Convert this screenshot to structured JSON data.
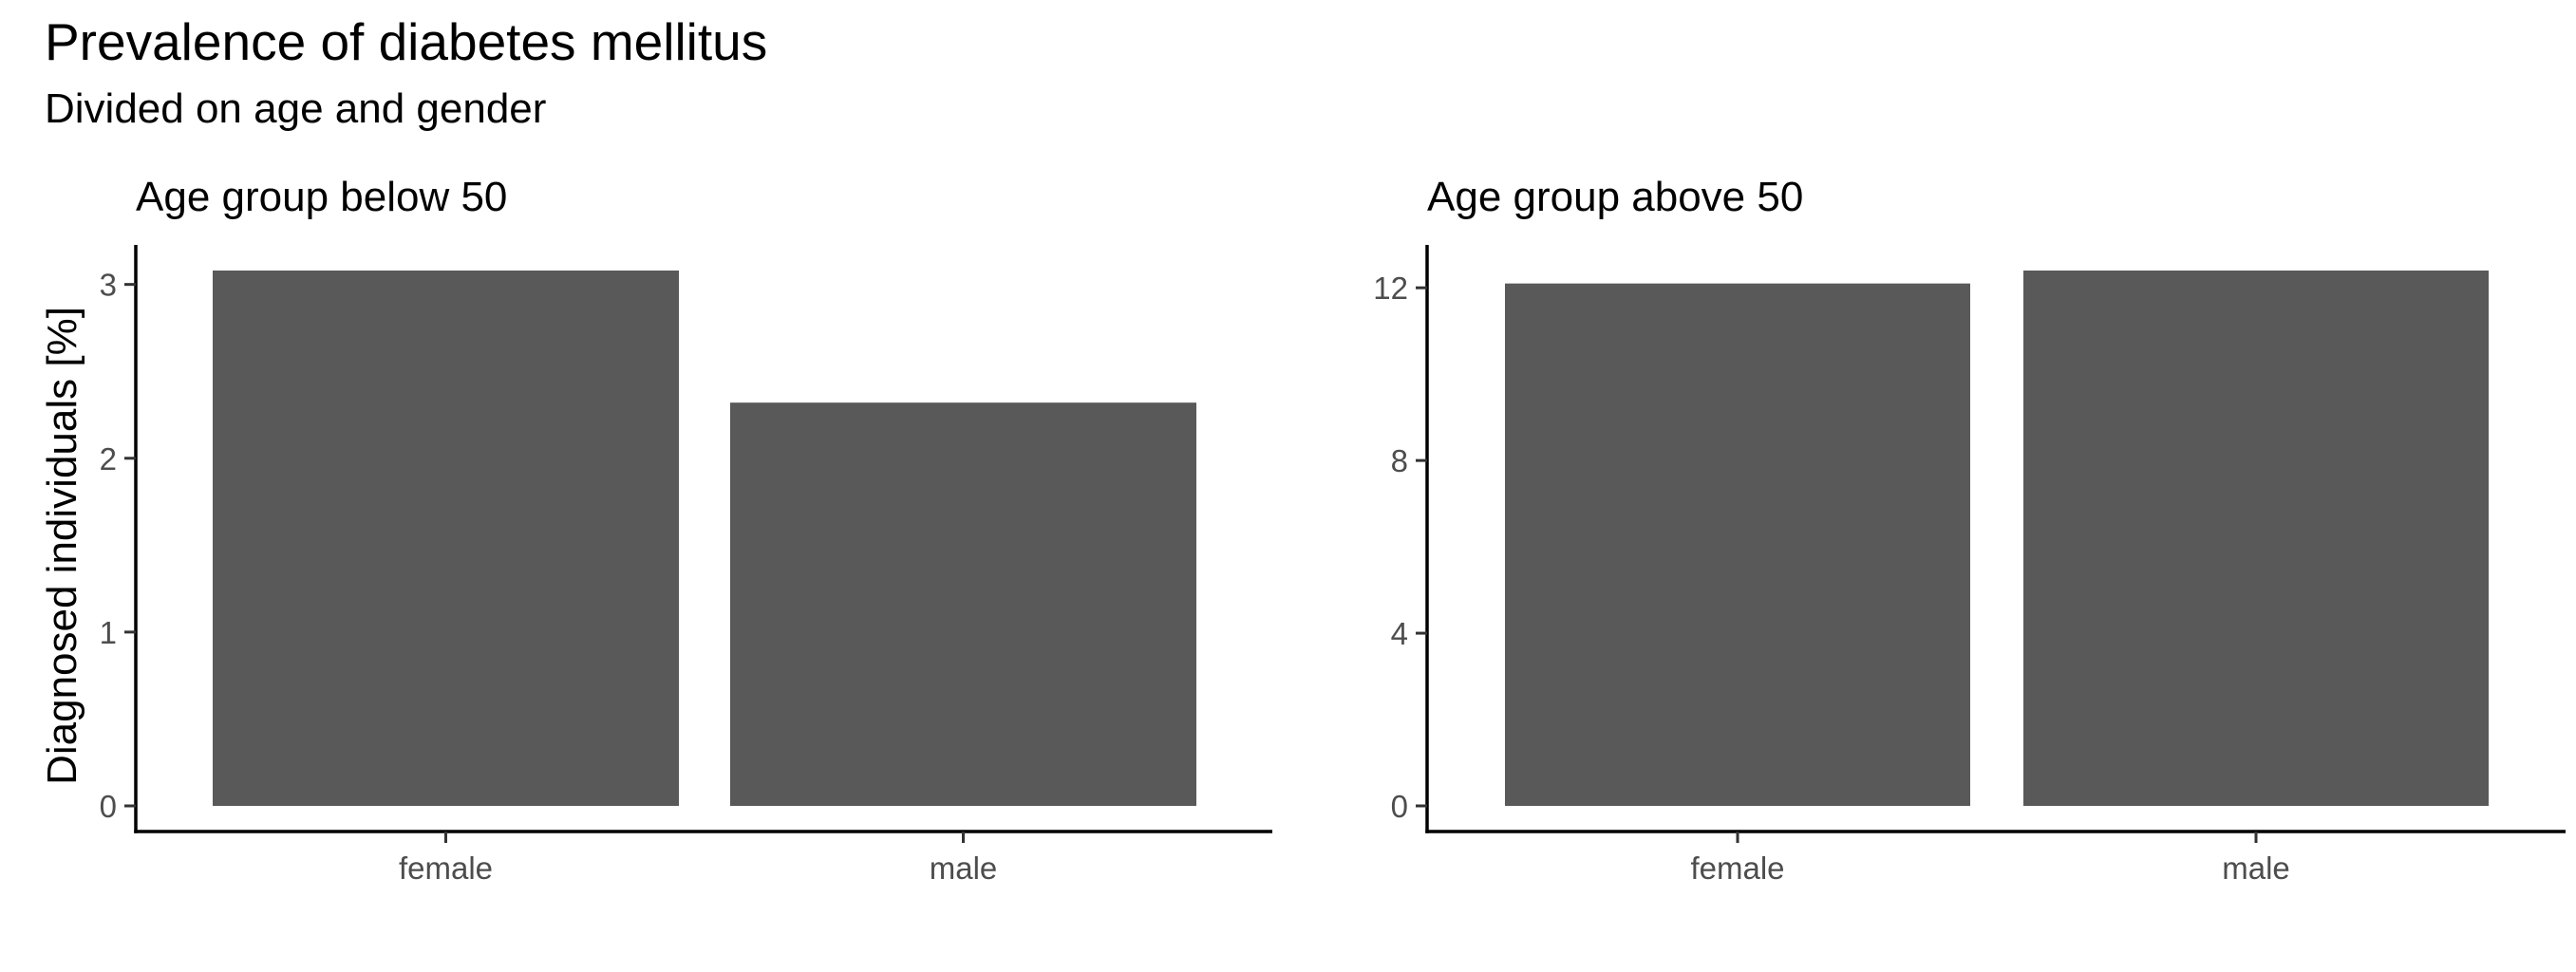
{
  "title": "Prevalence of diabetes mellitus",
  "subtitle": "Divided on age and gender",
  "colors": {
    "bar": "#595959",
    "axis": "#000000",
    "tick_text": "#4d4d4d"
  },
  "chart_data": [
    {
      "type": "bar",
      "title": "Age group below 50",
      "ylabel": "Diagnosed individuals [%]",
      "xlabel": "",
      "categories": [
        "female",
        "male"
      ],
      "values": [
        3.08,
        2.32
      ],
      "ylim": [
        0,
        3.08
      ],
      "yticks": [
        0,
        1,
        2,
        3
      ],
      "grid": false,
      "legend": "none"
    },
    {
      "type": "bar",
      "title": "Age group above 50",
      "ylabel": "",
      "xlabel": "",
      "categories": [
        "female",
        "male"
      ],
      "values": [
        12.1,
        12.4
      ],
      "ylim": [
        0,
        12.4
      ],
      "yticks": [
        0,
        4,
        8,
        12
      ],
      "grid": false,
      "legend": "none"
    }
  ]
}
